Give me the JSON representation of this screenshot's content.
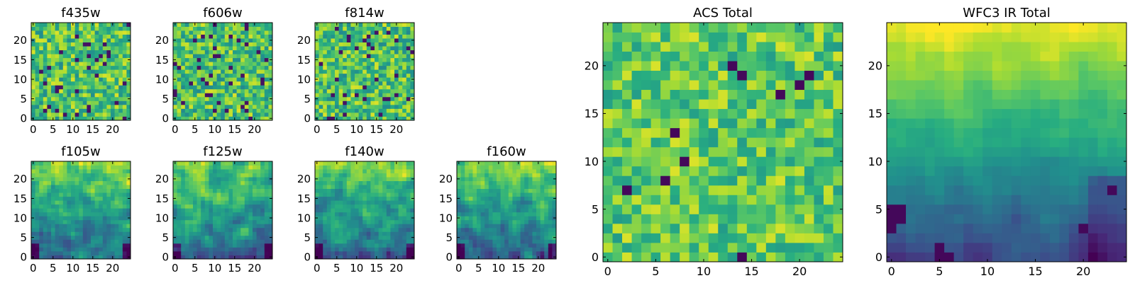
{
  "chart_data": [
    {
      "type": "heatmap",
      "title": "f435w",
      "grid_size": 25,
      "xticks": [
        0,
        5,
        10,
        15,
        20
      ],
      "yticks": [
        0,
        5,
        10,
        15,
        20
      ],
      "xlim": [
        -0.5,
        24.5
      ],
      "ylim": [
        -0.5,
        24.5
      ],
      "colormap": "viridis",
      "seed": 11,
      "pattern": "noise"
    },
    {
      "type": "heatmap",
      "title": "f606w",
      "grid_size": 25,
      "xticks": [
        0,
        5,
        10,
        15,
        20
      ],
      "yticks": [
        0,
        5,
        10,
        15,
        20
      ],
      "xlim": [
        -0.5,
        24.5
      ],
      "ylim": [
        -0.5,
        24.5
      ],
      "colormap": "viridis",
      "seed": 23,
      "pattern": "noise"
    },
    {
      "type": "heatmap",
      "title": "f814w",
      "grid_size": 25,
      "xticks": [
        0,
        5,
        10,
        15,
        20
      ],
      "yticks": [
        0,
        5,
        10,
        15,
        20
      ],
      "xlim": [
        -0.5,
        24.5
      ],
      "ylim": [
        -0.5,
        24.5
      ],
      "colormap": "viridis",
      "seed": 37,
      "pattern": "noise"
    },
    {
      "type": "heatmap",
      "title": "f105w",
      "grid_size": 25,
      "xticks": [
        0,
        5,
        10,
        15,
        20
      ],
      "yticks": [
        0,
        5,
        10,
        15,
        20
      ],
      "xlim": [
        -0.5,
        24.5
      ],
      "ylim": [
        -0.5,
        24.5
      ],
      "colormap": "viridis",
      "seed": 41,
      "pattern": "ir"
    },
    {
      "type": "heatmap",
      "title": "f125w",
      "grid_size": 25,
      "xticks": [
        0,
        5,
        10,
        15,
        20
      ],
      "yticks": [
        0,
        5,
        10,
        15,
        20
      ],
      "xlim": [
        -0.5,
        24.5
      ],
      "ylim": [
        -0.5,
        24.5
      ],
      "colormap": "viridis",
      "seed": 53,
      "pattern": "ir"
    },
    {
      "type": "heatmap",
      "title": "f140w",
      "grid_size": 25,
      "xticks": [
        0,
        5,
        10,
        15,
        20
      ],
      "yticks": [
        0,
        5,
        10,
        15,
        20
      ],
      "xlim": [
        -0.5,
        24.5
      ],
      "ylim": [
        -0.5,
        24.5
      ],
      "colormap": "viridis",
      "seed": 67,
      "pattern": "ir"
    },
    {
      "type": "heatmap",
      "title": "f160w",
      "grid_size": 25,
      "xticks": [
        0,
        5,
        10,
        15,
        20
      ],
      "yticks": [
        0,
        5,
        10,
        15,
        20
      ],
      "xlim": [
        -0.5,
        24.5
      ],
      "ylim": [
        -0.5,
        24.5
      ],
      "colormap": "viridis",
      "seed": 79,
      "pattern": "ir"
    },
    {
      "type": "heatmap",
      "title": "ACS Total",
      "grid_size": 25,
      "xticks": [
        0,
        5,
        10,
        15,
        20
      ],
      "yticks": [
        0,
        5,
        10,
        15,
        20
      ],
      "xlim": [
        -0.5,
        24.5
      ],
      "ylim": [
        -0.5,
        24.5
      ],
      "colormap": "viridis",
      "seed": 101,
      "pattern": "acs",
      "dark_pixels": [
        [
          14,
          19
        ],
        [
          21,
          19
        ],
        [
          20,
          18
        ],
        [
          7,
          13
        ],
        [
          8,
          10
        ],
        [
          6,
          8
        ],
        [
          2,
          7
        ],
        [
          14,
          0
        ],
        [
          13,
          20
        ],
        [
          18,
          17
        ]
      ]
    },
    {
      "type": "heatmap",
      "title": "WFC3 IR Total",
      "grid_size": 25,
      "xticks": [
        0,
        5,
        10,
        15,
        20
      ],
      "yticks": [
        0,
        5,
        10,
        15,
        20
      ],
      "xlim": [
        -0.5,
        24.5
      ],
      "ylim": [
        -0.5,
        24.5
      ],
      "colormap": "viridis",
      "seed": 131,
      "pattern": "wfc3",
      "dark_pixels": [
        [
          0,
          5
        ],
        [
          1,
          5
        ],
        [
          0,
          4
        ],
        [
          1,
          4
        ],
        [
          0,
          3
        ],
        [
          5,
          0
        ],
        [
          5,
          1
        ],
        [
          6,
          0
        ],
        [
          20,
          3
        ],
        [
          23,
          7
        ]
      ]
    }
  ]
}
